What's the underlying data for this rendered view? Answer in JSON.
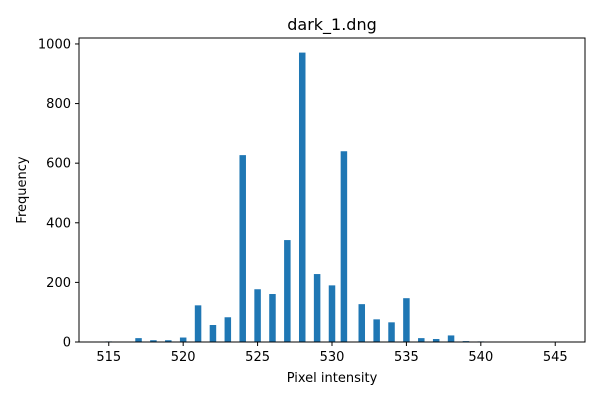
{
  "chart_data": {
    "type": "bar",
    "title": "dark_1.dng",
    "xlabel": "Pixel intensity",
    "ylabel": "Frequency",
    "xlim": [
      513,
      547
    ],
    "ylim": [
      0,
      1020
    ],
    "xticks": [
      515,
      520,
      525,
      530,
      535,
      540,
      545
    ],
    "yticks": [
      0,
      200,
      400,
      600,
      800,
      1000
    ],
    "grid": false,
    "bar_color": "#1f77b4",
    "x": [
      515,
      517,
      518,
      519,
      520,
      521,
      522,
      523,
      524,
      525,
      526,
      527,
      528,
      529,
      530,
      530.8,
      532,
      533,
      534,
      535,
      536,
      537,
      538,
      539,
      540,
      546
    ],
    "values": [
      2,
      13,
      6,
      6,
      15,
      123,
      57,
      83,
      627,
      177,
      161,
      342,
      971,
      228,
      190,
      640,
      127,
      76,
      66,
      147,
      13,
      10,
      22,
      3,
      2,
      1
    ]
  }
}
